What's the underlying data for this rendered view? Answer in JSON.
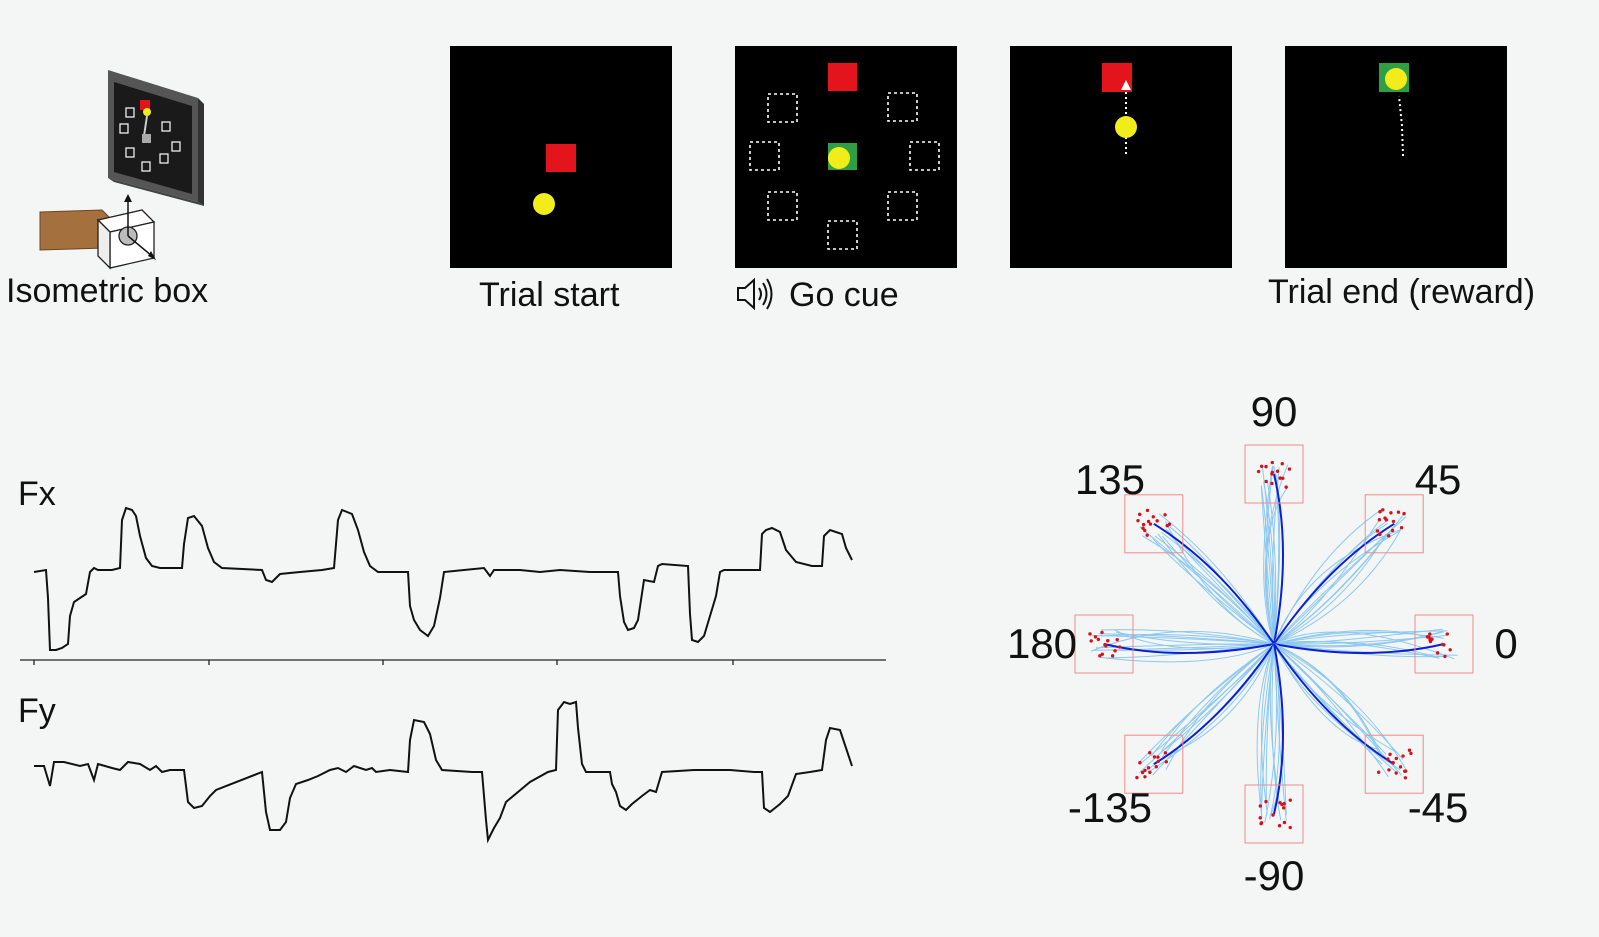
{
  "top": {
    "device_label": "Isometric box",
    "panels": [
      {
        "label": "Trial start"
      },
      {
        "label": "Go cue"
      },
      {
        "label": ""
      },
      {
        "label": "Trial end (reward)"
      }
    ]
  },
  "forces": {
    "fx_label": "Fx",
    "fy_label": "Fy"
  },
  "targets": {
    "angles": [
      {
        "deg": 90,
        "text": "90"
      },
      {
        "deg": 45,
        "text": "45"
      },
      {
        "deg": 135,
        "text": "135"
      },
      {
        "deg": 180,
        "text": "180"
      },
      {
        "deg": 0,
        "text": "0"
      },
      {
        "deg": -135,
        "text": "-135"
      },
      {
        "deg": -45,
        "text": "-45"
      },
      {
        "deg": -90,
        "text": "-90"
      }
    ]
  },
  "colors": {
    "target_red": "#e3141b",
    "target_green": "#2ea043",
    "cursor_yellow": "#f3ec1b",
    "trace_light": "#8cc8ef",
    "trace_dark": "#0d1fd4",
    "box_outline": "#f08a8a"
  }
}
